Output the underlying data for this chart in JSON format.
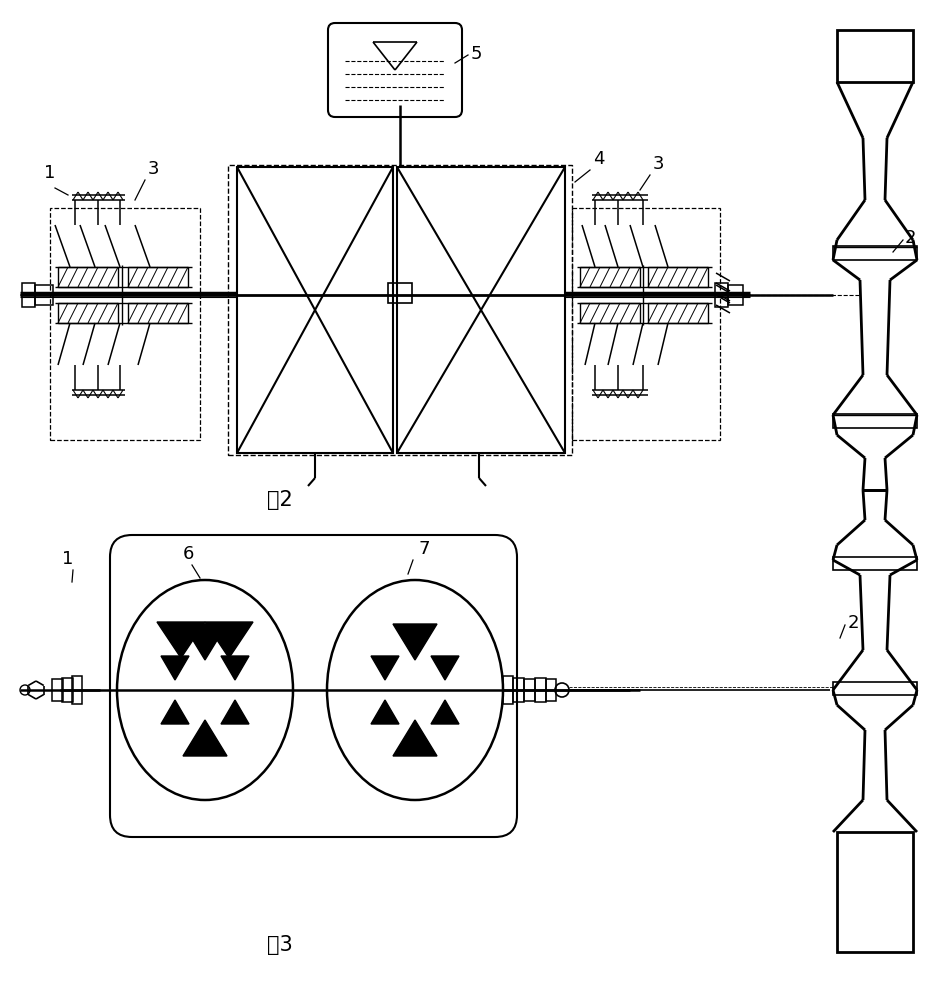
{
  "bg_color": "#ffffff",
  "line_color": "#000000",
  "fig_width": 9.43,
  "fig_height": 10.0,
  "label_1": "1",
  "label_2": "2",
  "label_3": "3",
  "label_4": "4",
  "label_5": "5",
  "label_6": "6",
  "label_7": "7",
  "fig2_label": "图2",
  "fig3_label": "图3"
}
